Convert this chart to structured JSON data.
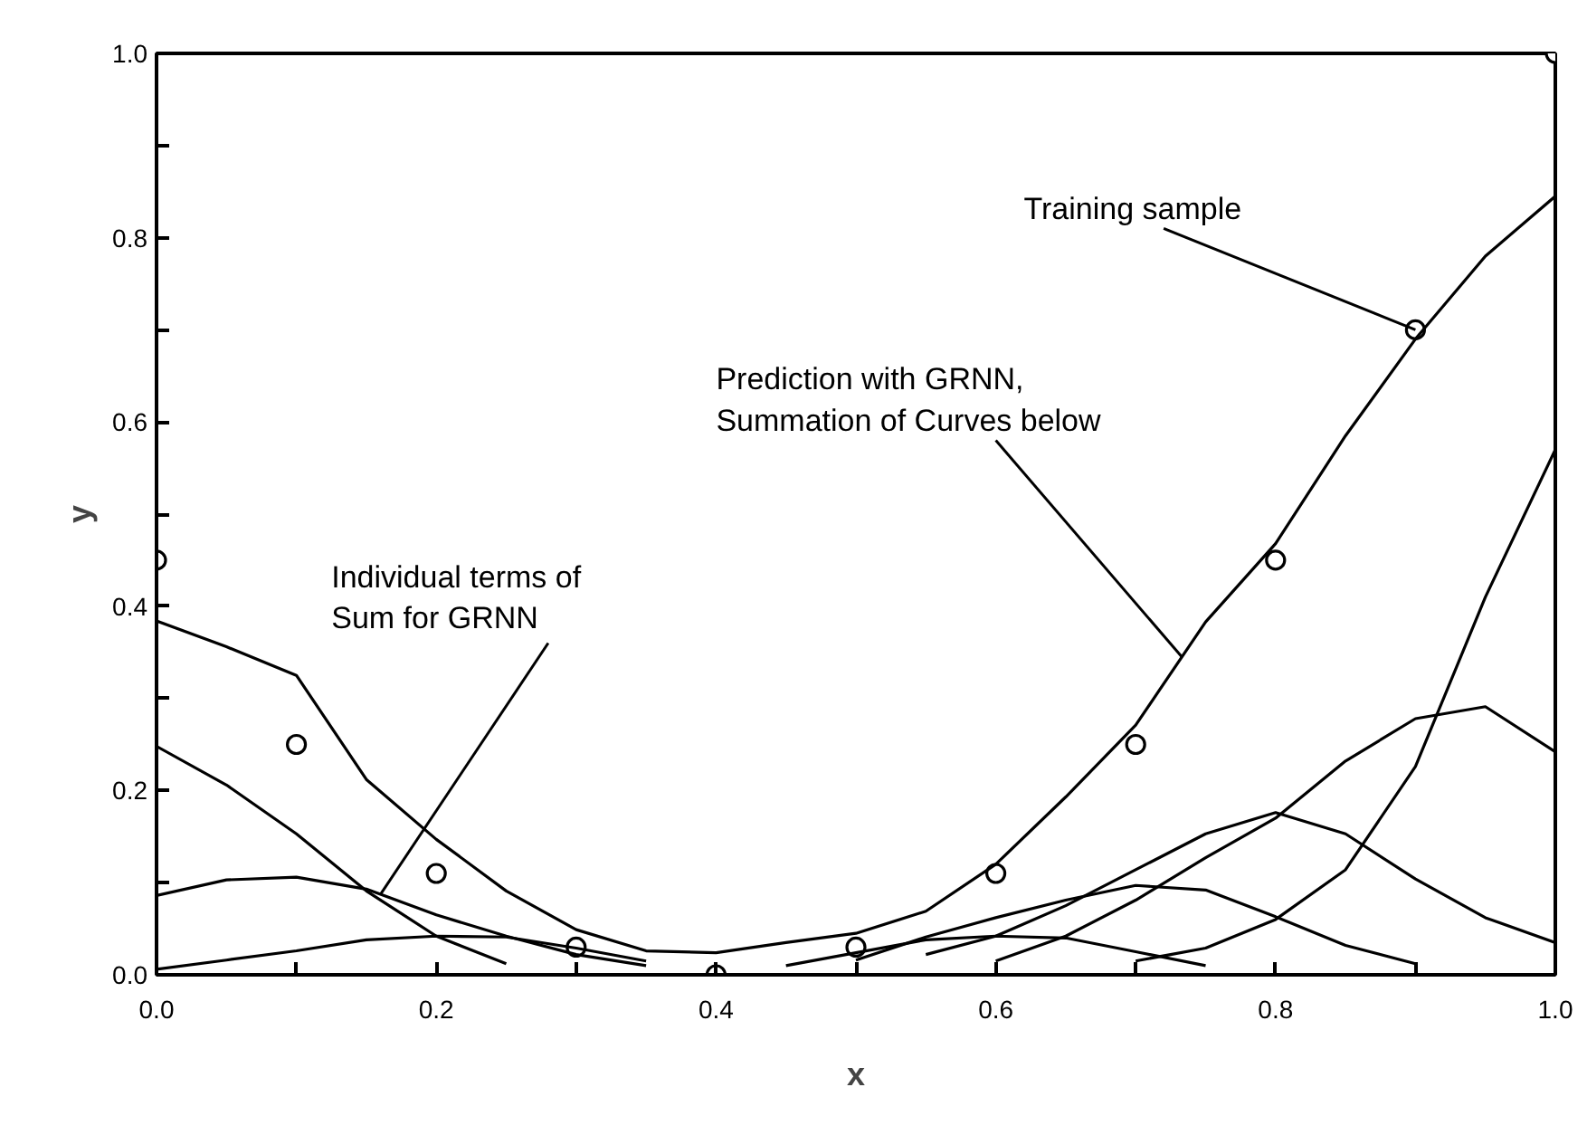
{
  "chart_data": {
    "type": "line",
    "xlabel": "x",
    "ylabel": "y",
    "xlim": [
      0,
      1.0
    ],
    "ylim": [
      0,
      1.0
    ],
    "xticks": [
      {
        "value": 0,
        "label": "0.0"
      },
      {
        "value": 0.1,
        "label": null
      },
      0.2,
      {
        "value": 0.3,
        "label": null
      },
      0.4,
      {
        "value": 0.5,
        "label": null
      },
      0.6,
      {
        "value": 0.7,
        "label": null
      },
      0.8,
      {
        "value": 0.9,
        "label": null
      },
      {
        "value": 1,
        "label": "1.0"
      }
    ],
    "yticks": [
      {
        "value": 0,
        "label": "0.0"
      },
      {
        "value": 0.1,
        "label": null
      },
      0.2,
      {
        "value": 0.3,
        "label": null
      },
      0.4,
      {
        "value": 0.5,
        "label": null
      },
      0.6,
      {
        "value": 0.7,
        "label": null
      },
      0.8,
      {
        "value": 0.9,
        "label": null
      },
      {
        "value": 1,
        "label": "1.0"
      }
    ],
    "grid": false,
    "line_style": "solid",
    "marker": "none",
    "series": [
      {
        "type": "scatter",
        "marker": "circle",
        "color": "#000000",
        "x": [
          0,
          0.1,
          0.2,
          0.3,
          0.4,
          0.5,
          0.6,
          0.7,
          0.8,
          0.9,
          1.0
        ],
        "values": [
          0.45,
          0.25,
          0.11,
          0.03,
          0,
          0.03,
          0.11,
          0.25,
          0.45,
          0.7,
          1.0
        ]
      },
      {
        "color": "#000000",
        "x": [
          0,
          0.05,
          0.1,
          0.15,
          0.2,
          0.25,
          0.3,
          0.35,
          0.4,
          0.45,
          0.5,
          0.55,
          0.6,
          0.65,
          0.7,
          0.75,
          0.8,
          0.85,
          0.9,
          0.95,
          1.0
        ],
        "values": [
          0.384,
          0.356,
          0.325,
          0.212,
          0.147,
          0.091,
          0.049,
          0.026,
          0.024,
          0.035,
          0.045,
          0.069,
          0.12,
          0.193,
          0.271,
          0.383,
          0.468,
          0.585,
          0.69,
          0.78,
          0.845
        ]
      },
      {
        "color": "#000000",
        "x": [
          0,
          0.05,
          0.1,
          0.15,
          0.2,
          0.25
        ],
        "values": [
          0.248,
          0.206,
          0.153,
          0.091,
          0.042,
          0.012
        ]
      },
      {
        "color": "#000000",
        "x": [
          0,
          0.05,
          0.1,
          0.15,
          0.2,
          0.25,
          0.3,
          0.35
        ],
        "values": [
          0.086,
          0.103,
          0.106,
          0.093,
          0.065,
          0.042,
          0.022,
          0.01
        ]
      },
      {
        "color": "#000000",
        "x": [
          0,
          0.05,
          0.1,
          0.15,
          0.2,
          0.25,
          0.3,
          0.35
        ],
        "values": [
          0.006,
          0.016,
          0.026,
          0.038,
          0.042,
          0.041,
          0.029,
          0.015
        ]
      },
      {
        "color": "#000000",
        "x": [
          0.45,
          0.5,
          0.55,
          0.6,
          0.65,
          0.7,
          0.75
        ],
        "values": [
          0.01,
          0.024,
          0.038,
          0.042,
          0.04,
          0.025,
          0.01
        ]
      },
      {
        "color": "#000000",
        "x": [
          0.5,
          0.55,
          0.6,
          0.65,
          0.7,
          0.75,
          0.8,
          0.85,
          0.9
        ],
        "values": [
          0.016,
          0.041,
          0.062,
          0.081,
          0.097,
          0.092,
          0.063,
          0.032,
          0.012
        ]
      },
      {
        "color": "#000000",
        "x": [
          0.55,
          0.6,
          0.65,
          0.7,
          0.75,
          0.8,
          0.85,
          0.9,
          0.95,
          1.0
        ],
        "values": [
          0.022,
          0.042,
          0.075,
          0.114,
          0.153,
          0.176,
          0.153,
          0.104,
          0.062,
          0.035
        ]
      },
      {
        "color": "#000000",
        "x": [
          0.6,
          0.65,
          0.7,
          0.75,
          0.8,
          0.85,
          0.9,
          0.95,
          1.0
        ],
        "values": [
          0.015,
          0.042,
          0.081,
          0.127,
          0.17,
          0.232,
          0.278,
          0.291,
          0.242
        ]
      },
      {
        "color": "#000000",
        "x": [
          0.7,
          0.75,
          0.8,
          0.85,
          0.9,
          0.95,
          1.0
        ],
        "values": [
          0.015,
          0.029,
          0.06,
          0.114,
          0.226,
          0.41,
          0.57
        ]
      }
    ],
    "annotations": [
      {
        "text": "Training sample",
        "x": 0.9,
        "y": 0.7
      },
      {
        "text": "Prediction with GRNN,\nSummation of Curves below",
        "x": 0.733,
        "y": 0.345
      },
      {
        "text": "Individual terms of\nSum for GRNN",
        "x": 0.16,
        "y": 0.087
      }
    ]
  }
}
